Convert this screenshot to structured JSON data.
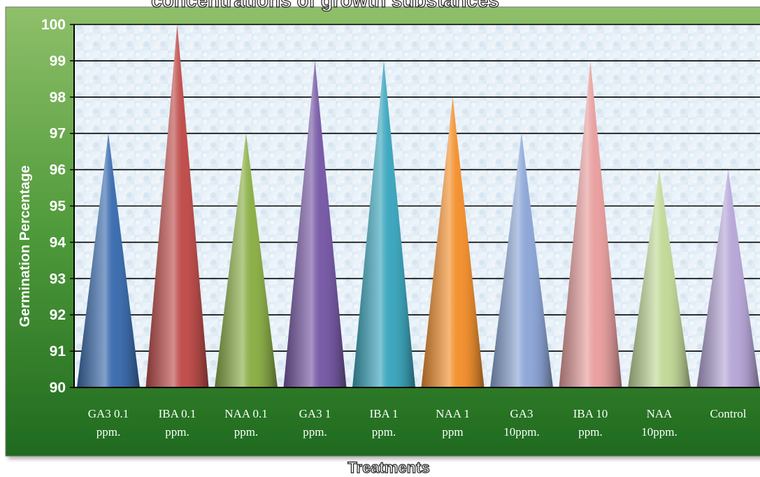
{
  "chart_data": {
    "type": "bar",
    "title": "concentrations of growth substances",
    "xlabel": "Treatments",
    "ylabel": "Germination Percentage",
    "ylim": [
      90,
      100
    ],
    "yticks": [
      90,
      91,
      92,
      93,
      94,
      95,
      96,
      97,
      98,
      99,
      100
    ],
    "grid": true,
    "categories": [
      [
        "GA3 0.1",
        "ppm."
      ],
      [
        "IBA 0.1",
        "ppm."
      ],
      [
        "NAA 0.1",
        "ppm."
      ],
      [
        "GA3 1",
        "ppm."
      ],
      [
        "IBA 1",
        "ppm."
      ],
      [
        "NAA 1",
        "ppm"
      ],
      [
        "GA3",
        "10ppm."
      ],
      [
        "IBA 10",
        "ppm."
      ],
      [
        "NAA",
        "10ppm."
      ],
      [
        "Control",
        ""
      ]
    ],
    "values": [
      97,
      100,
      97,
      99,
      99,
      98,
      97,
      99,
      96,
      96
    ],
    "colors": [
      "#3f6fb0",
      "#c0504d",
      "#8db04a",
      "#7a5ca8",
      "#3fa8bf",
      "#f39232",
      "#8fa8d8",
      "#e8a0a0",
      "#c3d99a",
      "#b8a8d8"
    ]
  }
}
